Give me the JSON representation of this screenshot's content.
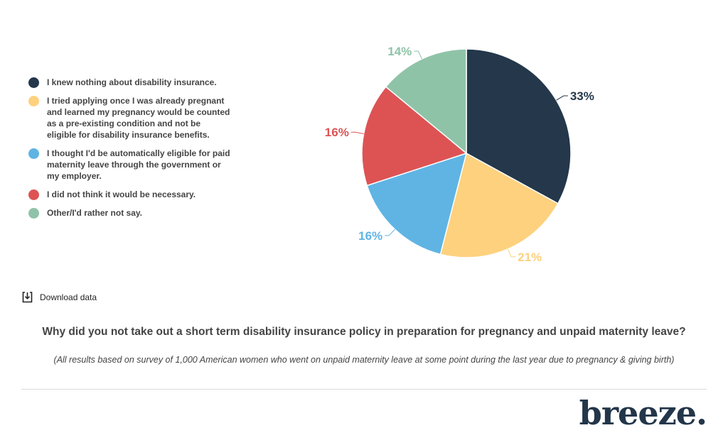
{
  "chart_data": {
    "type": "pie",
    "title": "Why did you not take out a short term disability insurance policy in preparation for pregnancy and unpaid maternity leave?",
    "subtitle": "(All results based on survey of 1,000 American women who went on unpaid maternity leave at some point during the last year due to pregnancy & giving birth)",
    "categories": [
      "I knew nothing about disability insurance.",
      "I tried applying once I was already pregnant and learned my pregnancy would be counted as a pre-existing condition and not be eligible for disability insurance benefits.",
      "I thought I'd be automatically eligible for paid maternity leave through the government or my employer.",
      "I did not think it would be necessary.",
      "Other/I'd rather not say."
    ],
    "values": [
      33,
      21,
      16,
      16,
      14
    ],
    "labels": [
      "33%",
      "21%",
      "16%",
      "16%",
      "14%"
    ],
    "colors": [
      "#24374b",
      "#fed17e",
      "#5fb4e4",
      "#dd5354",
      "#8fc3a8"
    ],
    "legend": "left"
  },
  "download": {
    "label": "Download data",
    "icon": "download-icon"
  },
  "brand": {
    "logo": "breeze."
  }
}
